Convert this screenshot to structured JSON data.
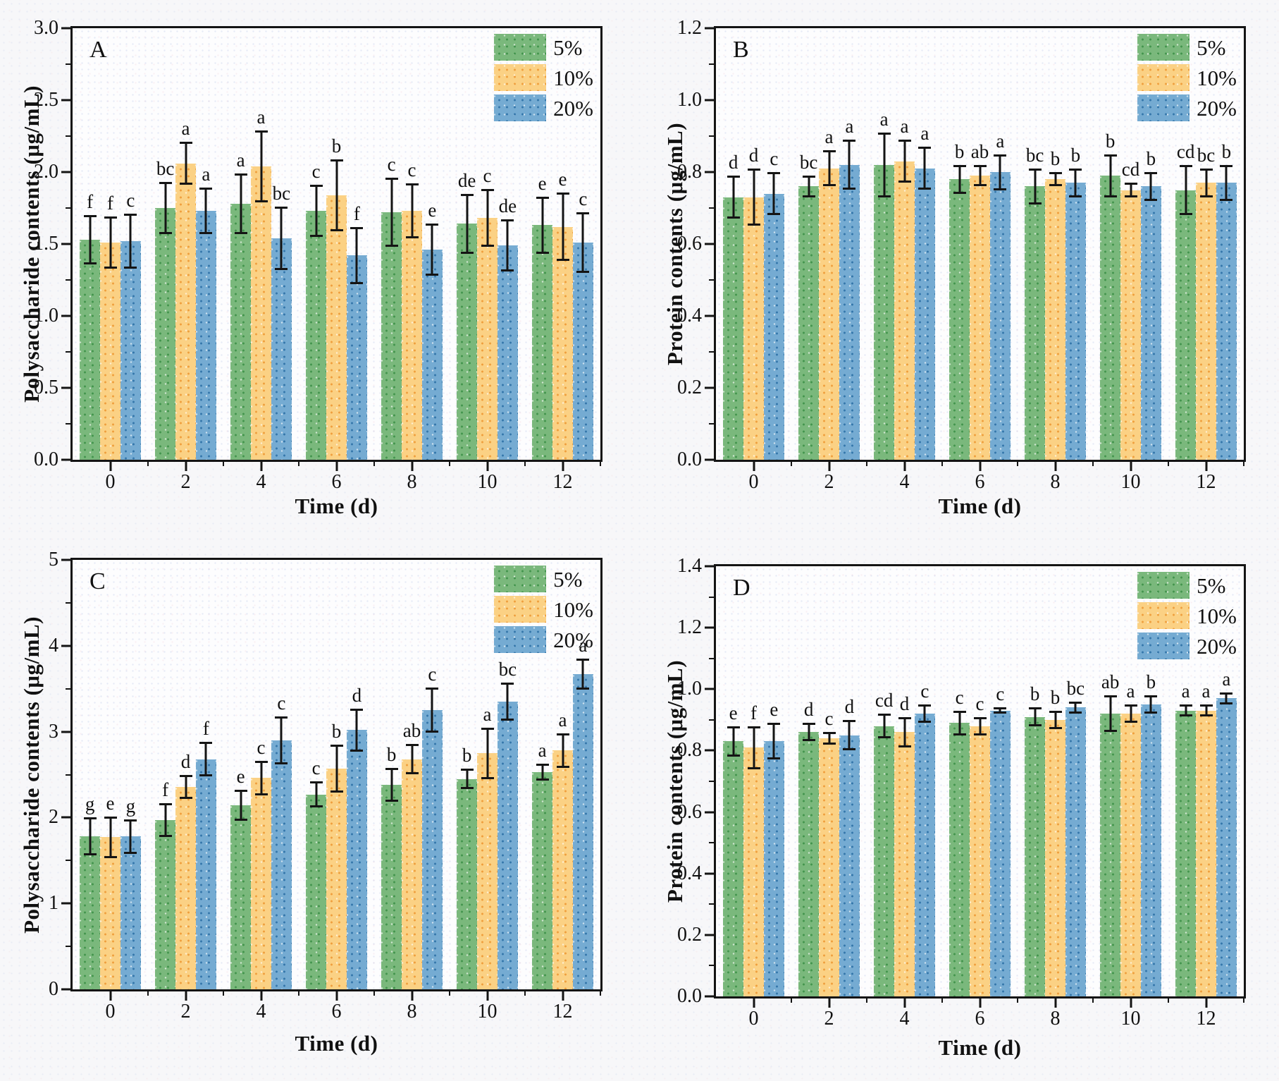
{
  "figure_type": "four-panel bar chart figure",
  "chart_data": [
    {
      "panel_letter": "A",
      "type": "bar",
      "ylabel": "Polysaccharide contents (μg/mL)",
      "xlabel": "Time (d)",
      "ylim": [
        0,
        3.0
      ],
      "ytick_step": 0.5,
      "ytick_decimals": 1,
      "xlim": [
        -1,
        13
      ],
      "x_categories": [
        0,
        2,
        4,
        6,
        8,
        10,
        12
      ],
      "grid": false,
      "legend_position": "top-right",
      "series": [
        {
          "name": "5%",
          "color": "#7ab87c",
          "dot_color": "#44954e",
          "values": [
            1.53,
            1.75,
            1.78,
            1.73,
            1.72,
            1.64,
            1.63
          ],
          "errors": [
            0.17,
            0.18,
            0.21,
            0.18,
            0.24,
            0.21,
            0.2
          ],
          "sig_letters": [
            "f",
            "bc",
            "a",
            "c",
            "c",
            "de",
            "e"
          ]
        },
        {
          "name": "10%",
          "color": "#fbd184",
          "dot_color": "#ef9f3e",
          "values": [
            1.51,
            2.06,
            2.04,
            1.84,
            1.73,
            1.68,
            1.62
          ],
          "errors": [
            0.18,
            0.15,
            0.25,
            0.25,
            0.19,
            0.2,
            0.24
          ],
          "sig_letters": [
            "f",
            "a",
            "a",
            "b",
            "c",
            "c",
            "e"
          ]
        },
        {
          "name": "20%",
          "color": "#75abd2",
          "dot_color": "#3577ab",
          "values": [
            1.52,
            1.73,
            1.54,
            1.42,
            1.46,
            1.49,
            1.51
          ],
          "errors": [
            0.19,
            0.16,
            0.22,
            0.2,
            0.18,
            0.18,
            0.21
          ],
          "sig_letters": [
            "c",
            "a",
            "bc",
            "f",
            "e",
            "de",
            "c"
          ]
        }
      ]
    },
    {
      "panel_letter": "B",
      "type": "bar",
      "ylabel": "Protein contents (μg/mL)",
      "xlabel": "Time (d)",
      "ylim": [
        0,
        1.2
      ],
      "ytick_step": 0.2,
      "ytick_decimals": 1,
      "xlim": [
        -1,
        13
      ],
      "x_categories": [
        0,
        2,
        4,
        6,
        8,
        10,
        12
      ],
      "grid": false,
      "legend_position": "top-right",
      "series": [
        {
          "name": "5%",
          "color": "#7ab87c",
          "dot_color": "#44954e",
          "values": [
            0.73,
            0.76,
            0.82,
            0.78,
            0.76,
            0.79,
            0.75
          ],
          "errors": [
            0.06,
            0.03,
            0.09,
            0.04,
            0.05,
            0.06,
            0.07
          ],
          "sig_letters": [
            "d",
            "bc",
            "a",
            "b",
            "bc",
            "b",
            "cd"
          ]
        },
        {
          "name": "10%",
          "color": "#fbd184",
          "dot_color": "#ef9f3e",
          "values": [
            0.73,
            0.81,
            0.83,
            0.79,
            0.78,
            0.75,
            0.77
          ],
          "errors": [
            0.08,
            0.05,
            0.06,
            0.03,
            0.02,
            0.02,
            0.04
          ],
          "sig_letters": [
            "d",
            "a",
            "a",
            "ab",
            "b",
            "cd",
            "bc"
          ]
        },
        {
          "name": "20%",
          "color": "#75abd2",
          "dot_color": "#3577ab",
          "values": [
            0.74,
            0.82,
            0.81,
            0.8,
            0.77,
            0.76,
            0.77
          ],
          "errors": [
            0.06,
            0.07,
            0.06,
            0.05,
            0.04,
            0.04,
            0.05
          ],
          "sig_letters": [
            "c",
            "a",
            "a",
            "a",
            "b",
            "b",
            "b"
          ]
        }
      ]
    },
    {
      "panel_letter": "C",
      "type": "bar",
      "ylabel": "Polysaccharide contents (μg/mL)",
      "xlabel": "Time (d)",
      "ylim": [
        0,
        5
      ],
      "ytick_step": 1,
      "ytick_decimals": 0,
      "xlim": [
        -1,
        13
      ],
      "x_categories": [
        0,
        2,
        4,
        6,
        8,
        10,
        12
      ],
      "grid": false,
      "legend_position": "top-right",
      "series": [
        {
          "name": "5%",
          "color": "#7ab87c",
          "dot_color": "#44954e",
          "values": [
            1.78,
            1.97,
            2.14,
            2.27,
            2.38,
            2.45,
            2.53
          ],
          "errors": [
            0.22,
            0.2,
            0.18,
            0.15,
            0.2,
            0.12,
            0.1
          ],
          "sig_letters": [
            "g",
            "f",
            "e",
            "c",
            "b",
            "b",
            "a"
          ]
        },
        {
          "name": "10%",
          "color": "#fbd184",
          "dot_color": "#ef9f3e",
          "values": [
            1.77,
            2.36,
            2.46,
            2.57,
            2.68,
            2.75,
            2.78
          ],
          "errors": [
            0.24,
            0.14,
            0.2,
            0.28,
            0.18,
            0.3,
            0.2
          ],
          "sig_letters": [
            "e",
            "d",
            "c",
            "b",
            "ab",
            "a",
            "a"
          ]
        },
        {
          "name": "20%",
          "color": "#75abd2",
          "dot_color": "#3577ab",
          "values": [
            1.78,
            2.68,
            2.9,
            3.02,
            3.25,
            3.35,
            3.67
          ],
          "errors": [
            0.2,
            0.2,
            0.28,
            0.25,
            0.26,
            0.22,
            0.18
          ],
          "sig_letters": [
            "g",
            "f",
            "c",
            "d",
            "c",
            "bc",
            "a"
          ]
        }
      ]
    },
    {
      "panel_letter": "D",
      "type": "bar",
      "ylabel": "Protein contents (μg/mL)",
      "xlabel": "Time (d)",
      "ylim": [
        0,
        1.4
      ],
      "ytick_step": 0.2,
      "ytick_decimals": 1,
      "xlim": [
        -1,
        13
      ],
      "x_categories": [
        0,
        2,
        4,
        6,
        8,
        10,
        12
      ],
      "grid": false,
      "legend_position": "top-right",
      "series": [
        {
          "name": "5%",
          "color": "#7ab87c",
          "dot_color": "#44954e",
          "values": [
            0.83,
            0.86,
            0.88,
            0.89,
            0.91,
            0.92,
            0.93
          ],
          "errors": [
            0.05,
            0.03,
            0.04,
            0.04,
            0.03,
            0.06,
            0.02
          ],
          "sig_letters": [
            "e",
            "d",
            "cd",
            "c",
            "b",
            "ab",
            "a"
          ]
        },
        {
          "name": "10%",
          "color": "#fbd184",
          "dot_color": "#ef9f3e",
          "values": [
            0.81,
            0.84,
            0.86,
            0.88,
            0.9,
            0.92,
            0.93
          ],
          "errors": [
            0.07,
            0.02,
            0.05,
            0.03,
            0.03,
            0.03,
            0.02
          ],
          "sig_letters": [
            "f",
            "c",
            "d",
            "c",
            "b",
            "a",
            "a"
          ]
        },
        {
          "name": "20%",
          "color": "#75abd2",
          "dot_color": "#3577ab",
          "values": [
            0.83,
            0.85,
            0.92,
            0.93,
            0.94,
            0.95,
            0.97
          ],
          "errors": [
            0.06,
            0.05,
            0.03,
            0.01,
            0.02,
            0.03,
            0.02
          ],
          "sig_letters": [
            "e",
            "d",
            "c",
            "c",
            "bc",
            "b",
            "a"
          ]
        }
      ]
    }
  ]
}
